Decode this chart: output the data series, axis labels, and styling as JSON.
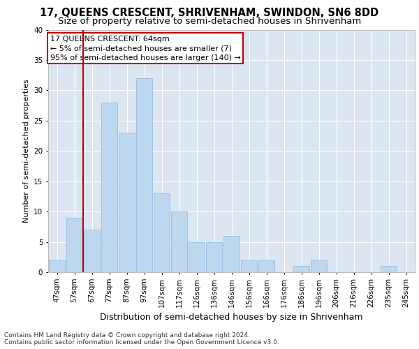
{
  "title1": "17, QUEENS CRESCENT, SHRIVENHAM, SWINDON, SN6 8DD",
  "title2": "Size of property relative to semi-detached houses in Shrivenham",
  "xlabel": "Distribution of semi-detached houses by size in Shrivenham",
  "ylabel": "Number of semi-detached properties",
  "footer1": "Contains HM Land Registry data © Crown copyright and database right 2024.",
  "footer2": "Contains public sector information licensed under the Open Government Licence v3.0.",
  "annotation_line1": "17 QUEENS CRESCENT: 64sqm",
  "annotation_line2": "← 5% of semi-detached houses are smaller (7)",
  "annotation_line3": "95% of semi-detached houses are larger (140) →",
  "bar_labels": [
    "47sqm",
    "57sqm",
    "67sqm",
    "77sqm",
    "87sqm",
    "97sqm",
    "107sqm",
    "117sqm",
    "126sqm",
    "136sqm",
    "146sqm",
    "156sqm",
    "166sqm",
    "176sqm",
    "186sqm",
    "196sqm",
    "206sqm",
    "216sqm",
    "226sqm",
    "235sqm",
    "245sqm"
  ],
  "bar_values": [
    2,
    9,
    7,
    28,
    23,
    32,
    13,
    10,
    5,
    5,
    6,
    2,
    2,
    0,
    1,
    2,
    0,
    0,
    0,
    1,
    0
  ],
  "bar_color": "#bdd7ee",
  "bar_edge_color": "#9dc3e6",
  "vline_color": "#c00000",
  "annotation_box_color": "#c00000",
  "plot_bg_color": "#dce6f1",
  "fig_bg_color": "#ffffff",
  "ylim": [
    0,
    40
  ],
  "yticks": [
    0,
    5,
    10,
    15,
    20,
    25,
    30,
    35,
    40
  ],
  "grid_color": "#ffffff",
  "title1_fontsize": 10.5,
  "title2_fontsize": 9.5,
  "xlabel_fontsize": 9,
  "ylabel_fontsize": 8,
  "tick_fontsize": 7.5,
  "annotation_fontsize": 8,
  "footer_fontsize": 6.5
}
